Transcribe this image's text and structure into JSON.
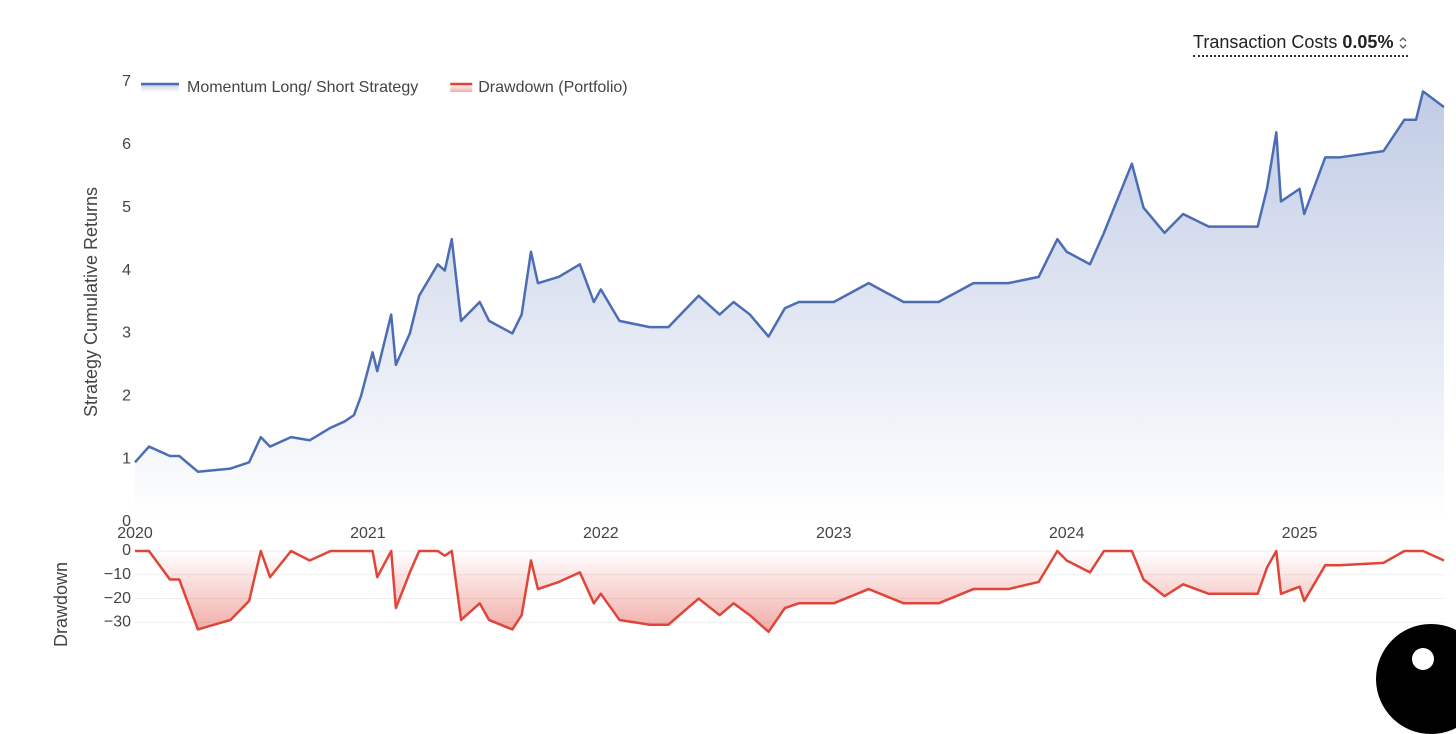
{
  "controls": {
    "label": "Transaction Costs",
    "value": "0.05%"
  },
  "chart_data": [
    {
      "type": "line",
      "ylabel": "Strategy Cumulative Returns",
      "legend": "top-left",
      "grid": false,
      "x": [
        2020.0,
        2020.06,
        2020.15,
        2020.19,
        2020.27,
        2020.41,
        2020.49,
        2020.54,
        2020.58,
        2020.67,
        2020.75,
        2020.84,
        2020.9,
        2020.94,
        2020.97,
        2021.02,
        2021.04,
        2021.1,
        2021.12,
        2021.18,
        2021.22,
        2021.3,
        2021.33,
        2021.36,
        2021.4,
        2021.48,
        2021.52,
        2021.62,
        2021.66,
        2021.7,
        2021.73,
        2021.82,
        2021.91,
        2021.97,
        2022.0,
        2022.08,
        2022.21,
        2022.29,
        2022.42,
        2022.51,
        2022.57,
        2022.64,
        2022.72,
        2022.79,
        2022.85,
        2023.0,
        2023.15,
        2023.3,
        2023.45,
        2023.6,
        2023.75,
        2023.88,
        2023.96,
        2024.0,
        2024.1,
        2024.16,
        2024.28,
        2024.33,
        2024.42,
        2024.5,
        2024.61,
        2024.74,
        2024.82,
        2024.86,
        2024.9,
        2024.92,
        2025.0,
        2025.02,
        2025.11,
        2025.17,
        2025.36,
        2025.45,
        2025.5,
        2025.53,
        2025.62
      ],
      "series": [
        {
          "name": "Momentum Long/ Short Strategy",
          "color": "#4c6db4",
          "values": [
            0.95,
            1.2,
            1.05,
            1.05,
            0.8,
            0.85,
            0.95,
            1.35,
            1.2,
            1.35,
            1.3,
            1.5,
            1.6,
            1.7,
            2.0,
            2.7,
            2.4,
            3.3,
            2.5,
            3.0,
            3.6,
            4.1,
            4.0,
            4.5,
            3.2,
            3.5,
            3.2,
            3.0,
            3.3,
            4.3,
            3.8,
            3.9,
            4.1,
            3.5,
            3.7,
            3.2,
            3.1,
            3.1,
            3.6,
            3.3,
            3.5,
            3.3,
            2.95,
            3.4,
            3.5,
            3.5,
            3.8,
            3.5,
            3.5,
            3.8,
            3.8,
            3.9,
            4.5,
            4.3,
            4.1,
            4.6,
            5.7,
            5.0,
            4.6,
            4.9,
            4.7,
            4.7,
            4.7,
            5.3,
            6.2,
            5.1,
            5.3,
            4.9,
            5.8,
            5.8,
            5.9,
            6.4,
            6.4,
            6.85,
            6.6
          ]
        }
      ],
      "xlim": [
        2020,
        2025.62
      ],
      "xticks": [
        2020,
        2021,
        2022,
        2023,
        2024,
        2025
      ],
      "ylim": [
        0,
        7
      ],
      "yticks": [
        0,
        1,
        2,
        3,
        4,
        5,
        6,
        7
      ]
    },
    {
      "type": "line",
      "ylabel": "Drawdown",
      "grid": true,
      "x": [
        2020.0,
        2020.06,
        2020.15,
        2020.19,
        2020.27,
        2020.41,
        2020.49,
        2020.54,
        2020.58,
        2020.67,
        2020.75,
        2020.84,
        2020.9,
        2020.94,
        2020.97,
        2021.02,
        2021.04,
        2021.1,
        2021.12,
        2021.18,
        2021.22,
        2021.3,
        2021.33,
        2021.36,
        2021.4,
        2021.48,
        2021.52,
        2021.62,
        2021.66,
        2021.7,
        2021.73,
        2021.82,
        2021.91,
        2021.97,
        2022.0,
        2022.08,
        2022.21,
        2022.29,
        2022.42,
        2022.51,
        2022.57,
        2022.64,
        2022.72,
        2022.79,
        2022.85,
        2023.0,
        2023.15,
        2023.3,
        2023.45,
        2023.6,
        2023.75,
        2023.88,
        2023.96,
        2024.0,
        2024.1,
        2024.16,
        2024.28,
        2024.33,
        2024.42,
        2024.5,
        2024.61,
        2024.74,
        2024.82,
        2024.86,
        2024.9,
        2024.92,
        2025.0,
        2025.02,
        2025.11,
        2025.17,
        2025.36,
        2025.45,
        2025.5,
        2025.53,
        2025.62
      ],
      "series": [
        {
          "name": "Drawdown (Portfolio)",
          "color": "#e0453a",
          "values": [
            0,
            0,
            -12,
            -12,
            -33,
            -29,
            -21,
            0,
            -11,
            0,
            -4,
            0,
            0,
            0,
            0,
            0,
            -11,
            0,
            -24,
            -9,
            0,
            0,
            -2,
            0,
            -29,
            -22,
            -29,
            -33,
            -27,
            -4,
            -16,
            -13,
            -9,
            -22,
            -18,
            -29,
            -31,
            -31,
            -20,
            -27,
            -22,
            -27,
            -34,
            -24,
            -22,
            -22,
            -16,
            -22,
            -22,
            -16,
            -16,
            -13,
            0,
            -4,
            -9,
            0,
            0,
            -12,
            -19,
            -14,
            -18,
            -18,
            -18,
            -7,
            0,
            -18,
            -15,
            -21,
            -6,
            -6,
            -5,
            0,
            0,
            0,
            -4
          ]
        }
      ],
      "xlim": [
        2020,
        2025.62
      ],
      "ylim": [
        -45,
        0
      ],
      "yticks": [
        0,
        {
          "value": -10,
          "label": "−10"
        },
        {
          "value": -20,
          "label": "−20"
        },
        {
          "value": -30,
          "label": "−30"
        }
      ]
    }
  ]
}
